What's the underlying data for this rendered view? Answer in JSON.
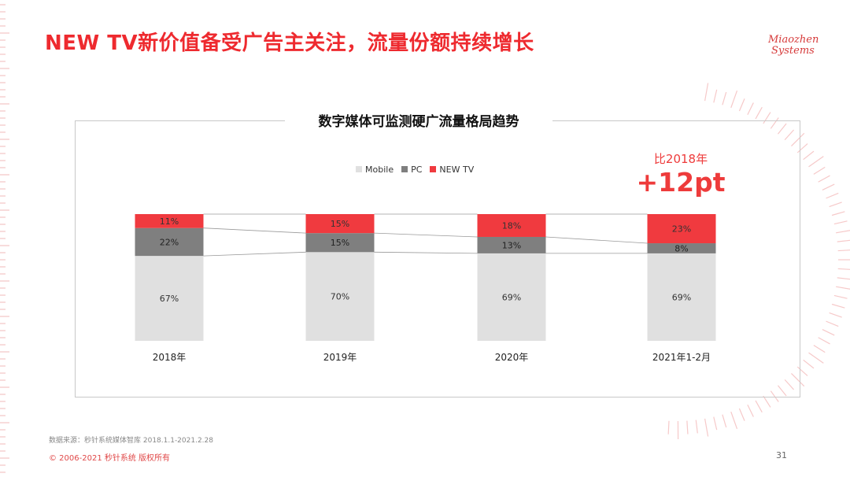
{
  "page": {
    "title": "NEW TV新价值备受广告主关注，流量份额持续增长",
    "logo_line1": "Miaozhen",
    "logo_line2": "Systems",
    "source": "数据来源：秒针系统媒体智库 2018.1.1-2021.2.28",
    "copyright": "© 2006-2021 秒针系统 版权所有",
    "page_number": "31"
  },
  "callout": {
    "line1": "比2018年",
    "line2": "+12pt"
  },
  "colors": {
    "accent": "#ee2a2f",
    "mobile": "#e0e0e0",
    "pc": "#7f7f7f",
    "new_tv": "#f03a3f"
  },
  "chart_data": {
    "type": "bar",
    "stacked": true,
    "percent": true,
    "title": "数字媒体可监测硬广流量格局趋势",
    "categories": [
      "2018年",
      "2019年",
      "2020年",
      "2021年1-2月"
    ],
    "series": [
      {
        "name": "Mobile",
        "values": [
          67,
          70,
          69,
          69
        ],
        "labels": [
          "67%",
          "70%",
          "69%",
          "69%"
        ]
      },
      {
        "name": "PC",
        "values": [
          22,
          15,
          13,
          8
        ],
        "labels": [
          "22%",
          "15%",
          "13%",
          "8%"
        ]
      },
      {
        "name": "NEW TV",
        "values": [
          11,
          15,
          18,
          23
        ],
        "labels": [
          "11%",
          "15%",
          "18%",
          "23%"
        ]
      }
    ],
    "ylim": [
      0,
      100
    ],
    "legend_position": "top-center",
    "series_lines": true,
    "grid": false
  }
}
